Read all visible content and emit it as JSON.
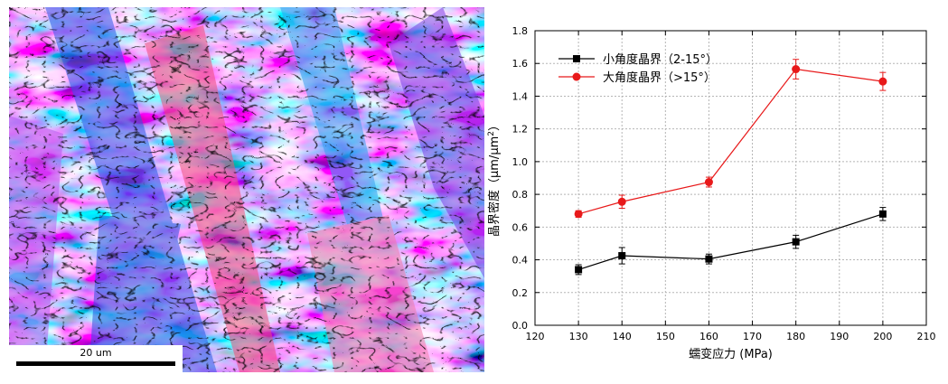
{
  "micrograph": {
    "scale_bar_label": "20 um"
  },
  "chart_data": {
    "type": "line",
    "x": [
      130,
      140,
      160,
      180,
      200
    ],
    "xlabel": "蠕变应力 (MPa)",
    "ylabel_main": "晶界密度（μm/μm",
    "ylabel_sup": "2",
    "ylabel_end": "）",
    "xlim": [
      120,
      210
    ],
    "ylim": [
      0.0,
      1.8
    ],
    "xticks": [
      "120",
      "130",
      "140",
      "150",
      "160",
      "170",
      "180",
      "190",
      "200",
      "210"
    ],
    "yticks": [
      "0.0",
      "0.2",
      "0.4",
      "0.6",
      "0.8",
      "1.0",
      "1.2",
      "1.4",
      "1.6",
      "1.8"
    ],
    "grid": true,
    "legend_position": "top-left",
    "series": [
      {
        "name": "小角度晶界（2-15°）",
        "values": [
          0.34,
          0.425,
          0.405,
          0.51,
          0.68
        ],
        "errors": [
          0.03,
          0.05,
          0.03,
          0.04,
          0.04
        ],
        "color": "#000000",
        "marker": "square"
      },
      {
        "name": "大角度晶界（>15°）",
        "values": [
          0.68,
          0.755,
          0.875,
          1.565,
          1.49
        ],
        "errors": [
          0.02,
          0.04,
          0.03,
          0.06,
          0.055
        ],
        "color": "#e8191a",
        "marker": "circle"
      }
    ]
  }
}
